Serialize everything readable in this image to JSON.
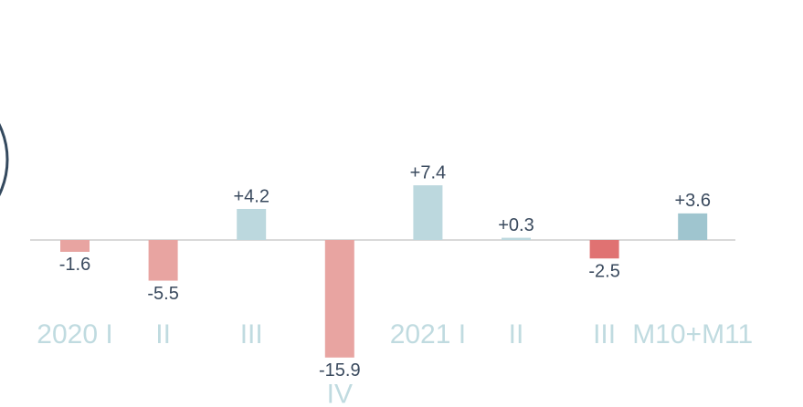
{
  "chart_data": {
    "type": "bar",
    "categories": [
      "2020 I",
      "II",
      "III",
      "IV",
      "2021 I",
      "II",
      "III",
      "M10+M11"
    ],
    "values": [
      -1.6,
      -5.5,
      4.2,
      -15.9,
      7.4,
      0.3,
      -2.5,
      3.6
    ],
    "value_labels": [
      "-1.6",
      "-5.5",
      "+4.2",
      "-15.9",
      "+7.4",
      "+0.3",
      "-2.5",
      "+3.6"
    ],
    "colors": [
      "#e8a4a1",
      "#e8a4a1",
      "#bcd8de",
      "#e8a4a1",
      "#bcd8de",
      "#bcd8de",
      "#e07272",
      "#9fc5cf"
    ]
  }
}
